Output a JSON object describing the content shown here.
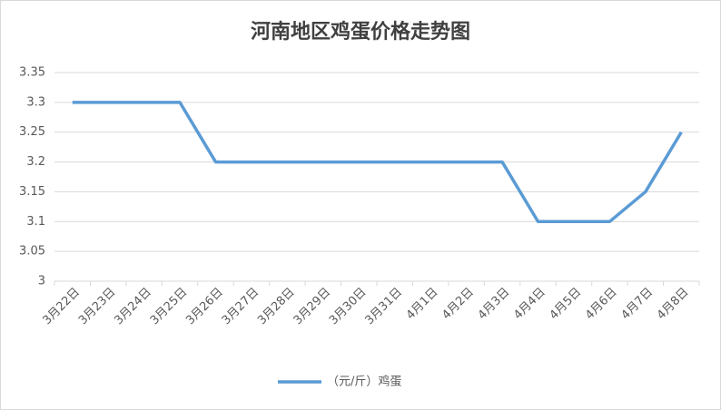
{
  "chart_data": {
    "type": "line",
    "title": "河南地区鸡蛋价格走势图",
    "categories": [
      "3月22日",
      "3月23日",
      "3月24日",
      "3月25日",
      "3月26日",
      "3月27日",
      "3月28日",
      "3月29日",
      "3月30日",
      "3月31日",
      "4月1日",
      "4月2日",
      "4月3日",
      "4月4日",
      "4月5日",
      "4月6日",
      "4月7日",
      "4月8日"
    ],
    "series": [
      {
        "name": "（元/斤）鸡蛋",
        "color": "#5b9bd5",
        "values": [
          3.3,
          3.3,
          3.3,
          3.3,
          3.2,
          3.2,
          3.2,
          3.2,
          3.2,
          3.2,
          3.2,
          3.2,
          3.2,
          3.1,
          3.1,
          3.1,
          3.15,
          3.25
        ]
      }
    ],
    "ylim": [
      3,
      3.35
    ],
    "yticks": [
      3,
      3.05,
      3.1,
      3.15,
      3.2,
      3.25,
      3.3,
      3.35
    ],
    "grid": true,
    "legend": "bottom"
  }
}
